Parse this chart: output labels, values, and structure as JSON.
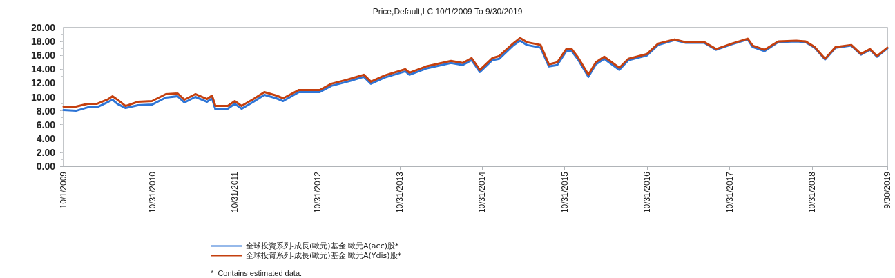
{
  "chart_data": {
    "type": "line",
    "title": "Price,Default,LC 10/1/2009 To 9/30/2019",
    "x": [
      "2009-10-01",
      "2009-11-25",
      "2010-01-16",
      "2010-02-25",
      "2010-04-18",
      "2010-05-06",
      "2010-05-28",
      "2010-07-03",
      "2010-08-27",
      "2010-10-28",
      "2010-12-28",
      "2011-02-18",
      "2011-03-21",
      "2011-05-08",
      "2011-06-29",
      "2011-07-21",
      "2011-08-05",
      "2011-09-29",
      "2011-10-30",
      "2011-11-29",
      "2012-01-21",
      "2012-03-09",
      "2012-05-01",
      "2012-05-31",
      "2012-08-09",
      "2012-11-09",
      "2012-12-31",
      "2013-03-12",
      "2013-05-24",
      "2013-06-24",
      "2013-08-24",
      "2013-11-24",
      "2013-12-12",
      "2014-02-24",
      "2014-06-14",
      "2014-08-05",
      "2014-09-13",
      "2014-10-20",
      "2014-12-14",
      "2015-01-14",
      "2015-03-16",
      "2015-04-16",
      "2015-05-16",
      "2015-07-16",
      "2015-08-22",
      "2015-09-28",
      "2015-11-07",
      "2015-12-01",
      "2015-12-29",
      "2016-02-13",
      "2016-03-17",
      "2016-04-23",
      "2016-06-29",
      "2016-08-08",
      "2016-10-30",
      "2016-12-18",
      "2017-03-01",
      "2017-04-19",
      "2017-07-11",
      "2017-09-01",
      "2017-11-10",
      "2018-01-19",
      "2018-02-10",
      "2018-04-03",
      "2018-06-03",
      "2018-08-22",
      "2018-10-03",
      "2018-11-12",
      "2018-12-28",
      "2019-02-12",
      "2019-04-23",
      "2019-06-05",
      "2019-07-15",
      "2019-08-15",
      "2019-09-30"
    ],
    "series": [
      {
        "name": "全球投資系列-成長(歐元)基金 歐元A(acc)股*",
        "color": "#2e75d6",
        "values": [
          8.1,
          8.0,
          8.5,
          8.5,
          9.3,
          9.6,
          9.0,
          8.4,
          8.8,
          8.9,
          9.9,
          10.1,
          9.2,
          10.0,
          9.3,
          9.8,
          8.2,
          8.3,
          9.0,
          8.3,
          9.3,
          10.3,
          9.8,
          9.4,
          10.7,
          10.7,
          11.6,
          12.2,
          12.9,
          11.9,
          12.8,
          13.7,
          13.2,
          14.1,
          14.9,
          14.6,
          15.3,
          13.6,
          15.3,
          15.5,
          17.4,
          18.1,
          17.5,
          17.1,
          14.4,
          14.6,
          16.6,
          16.6,
          15.4,
          12.9,
          14.7,
          15.5,
          13.9,
          15.3,
          16.0,
          17.5,
          18.2,
          17.8,
          17.8,
          16.8,
          17.6,
          18.3,
          17.2,
          16.6,
          17.9,
          18.0,
          17.9,
          17.1,
          15.4,
          17.1,
          17.4,
          16.1,
          16.8,
          15.8,
          17.0
        ]
      },
      {
        "name": "全球投資系列-成長(歐元)基金 歐元A(Ydis)股*",
        "color": "#c4400f",
        "values": [
          8.6,
          8.6,
          9.0,
          9.0,
          9.7,
          10.1,
          9.6,
          8.7,
          9.3,
          9.4,
          10.4,
          10.5,
          9.6,
          10.4,
          9.7,
          10.2,
          8.7,
          8.7,
          9.4,
          8.7,
          9.7,
          10.7,
          10.2,
          9.8,
          11.0,
          11.0,
          11.9,
          12.5,
          13.2,
          12.2,
          13.1,
          14.0,
          13.5,
          14.4,
          15.2,
          14.9,
          15.6,
          13.9,
          15.6,
          15.9,
          17.7,
          18.5,
          17.9,
          17.5,
          14.7,
          15.0,
          16.9,
          16.9,
          15.7,
          13.2,
          15.0,
          15.8,
          14.2,
          15.5,
          16.2,
          17.7,
          18.3,
          17.9,
          17.9,
          16.9,
          17.7,
          18.4,
          17.4,
          16.8,
          18.0,
          18.1,
          18.0,
          17.2,
          15.5,
          17.2,
          17.5,
          16.2,
          16.9,
          15.9,
          17.1
        ]
      }
    ],
    "xlim": [
      "2009-10-01",
      "2019-09-30"
    ],
    "xticks": [
      {
        "value": "2009-10-01",
        "label": "10/1/2009"
      },
      {
        "value": "2010-10-31",
        "label": "10/31/2010"
      },
      {
        "value": "2011-10-31",
        "label": "10/31/2011"
      },
      {
        "value": "2012-10-31",
        "label": "10/31/2012"
      },
      {
        "value": "2013-10-31",
        "label": "10/31/2013"
      },
      {
        "value": "2014-10-31",
        "label": "10/31/2014"
      },
      {
        "value": "2015-10-31",
        "label": "10/31/2015"
      },
      {
        "value": "2016-10-31",
        "label": "10/31/2016"
      },
      {
        "value": "2017-10-31",
        "label": "10/31/2017"
      },
      {
        "value": "2018-10-31",
        "label": "10/31/2018"
      },
      {
        "value": "2019-09-30",
        "label": "9/30/2019"
      }
    ],
    "ylim": [
      0,
      20
    ],
    "yticks": [
      {
        "value": 0,
        "label": "0.00"
      },
      {
        "value": 2,
        "label": "2.00"
      },
      {
        "value": 4,
        "label": "4.00"
      },
      {
        "value": 6,
        "label": "6.00"
      },
      {
        "value": 8,
        "label": "8.00"
      },
      {
        "value": 10,
        "label": "10.00"
      },
      {
        "value": 12,
        "label": "12.00"
      },
      {
        "value": 14,
        "label": "14.00"
      },
      {
        "value": 16,
        "label": "16.00"
      },
      {
        "value": 18,
        "label": "18.00"
      },
      {
        "value": 20,
        "label": "20.00"
      }
    ],
    "legend": "bottom",
    "annotations": [
      "*  Contains estimated data."
    ]
  }
}
